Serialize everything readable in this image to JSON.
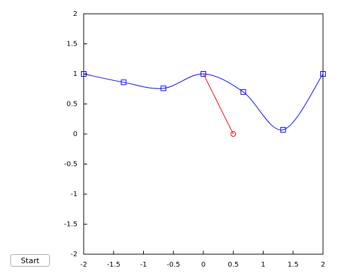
{
  "chart_data": {
    "type": "line",
    "xlim": [
      -2,
      2
    ],
    "ylim": [
      -2,
      2
    ],
    "xticks": [
      -2,
      -1.5,
      -1,
      -0.5,
      0,
      0.5,
      1,
      1.5,
      2
    ],
    "yticks": [
      -2,
      -1.5,
      -1,
      -0.5,
      0,
      0.5,
      1,
      1.5,
      2
    ],
    "series": [
      {
        "color": "#0000ff",
        "marker": "square",
        "smooth": true,
        "x": [
          -2,
          -1.333,
          -0.667,
          0,
          0.667,
          1.333,
          2
        ],
        "values": [
          1,
          0.86,
          0.76,
          1,
          0.7,
          0.07,
          1
        ]
      },
      {
        "color": "#ff0000",
        "marker": "circle",
        "marker_points": "last",
        "smooth": false,
        "x": [
          0,
          0.5
        ],
        "values": [
          1,
          0
        ]
      }
    ]
  },
  "controls": {
    "start_button": "Start"
  }
}
